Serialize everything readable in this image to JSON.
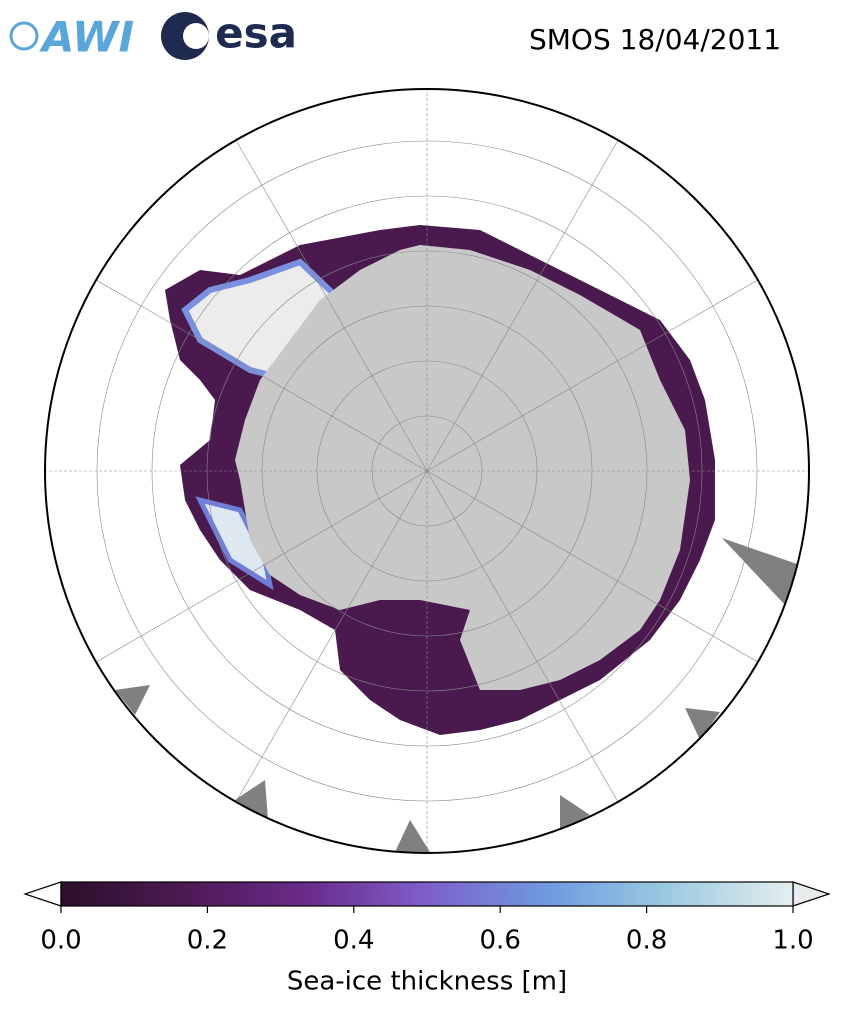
{
  "logos": {
    "awi": "AWI",
    "esa": "esa"
  },
  "title": "SMOS 18/04/2011",
  "colorbar": {
    "label": "Sea-ice thickness [m]",
    "range": [
      0,
      1
    ],
    "ticks": [
      {
        "value": 0,
        "label": "0.0"
      },
      0.2,
      0.4,
      0.6,
      0.8,
      {
        "value": 1,
        "label": "1.0"
      }
    ],
    "colormap": [
      "#2a0f2a",
      "#4d1a52",
      "#6a2a8a",
      "#7d5fc9",
      "#6f9be0",
      "#9ccbe0",
      "#e5eeee"
    ],
    "under_color": "#ffffff",
    "over_color": "#e8ecec"
  }
}
